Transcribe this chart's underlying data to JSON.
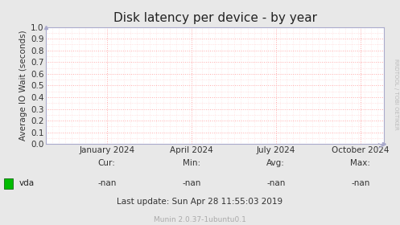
{
  "title": "Disk latency per device - by year",
  "ylabel": "Average IO Wait (seconds)",
  "bg_color": "#e8e8e8",
  "plot_bg_color": "#ffffff",
  "grid_color_major": "#ffaaaa",
  "grid_color_minor": "#ffcccc",
  "border_color": "#aaaacc",
  "ylim": [
    0.0,
    1.0
  ],
  "yticks": [
    0.0,
    0.1,
    0.2,
    0.3,
    0.4,
    0.5,
    0.6,
    0.7,
    0.8,
    0.9,
    1.0
  ],
  "xtick_labels": [
    "January 2024",
    "April 2024",
    "July 2024",
    "October 2024"
  ],
  "xtick_positions": [
    0.18,
    0.43,
    0.68,
    0.93
  ],
  "legend_label": "vda",
  "legend_color": "#00bb00",
  "cur_value": "-nan",
  "min_value": "-nan",
  "avg_value": "-nan",
  "max_value": "-nan",
  "last_update": "Last update: Sun Apr 28 11:55:03 2019",
  "munin_text": "Munin 2.0.37-1ubuntu0.1",
  "rrdtool_text": "RRDTOOL / TOBI OETIKER",
  "title_fontsize": 11,
  "axis_label_fontsize": 7.5,
  "tick_fontsize": 7.5,
  "small_fontsize": 6.5,
  "rrd_fontsize": 5
}
